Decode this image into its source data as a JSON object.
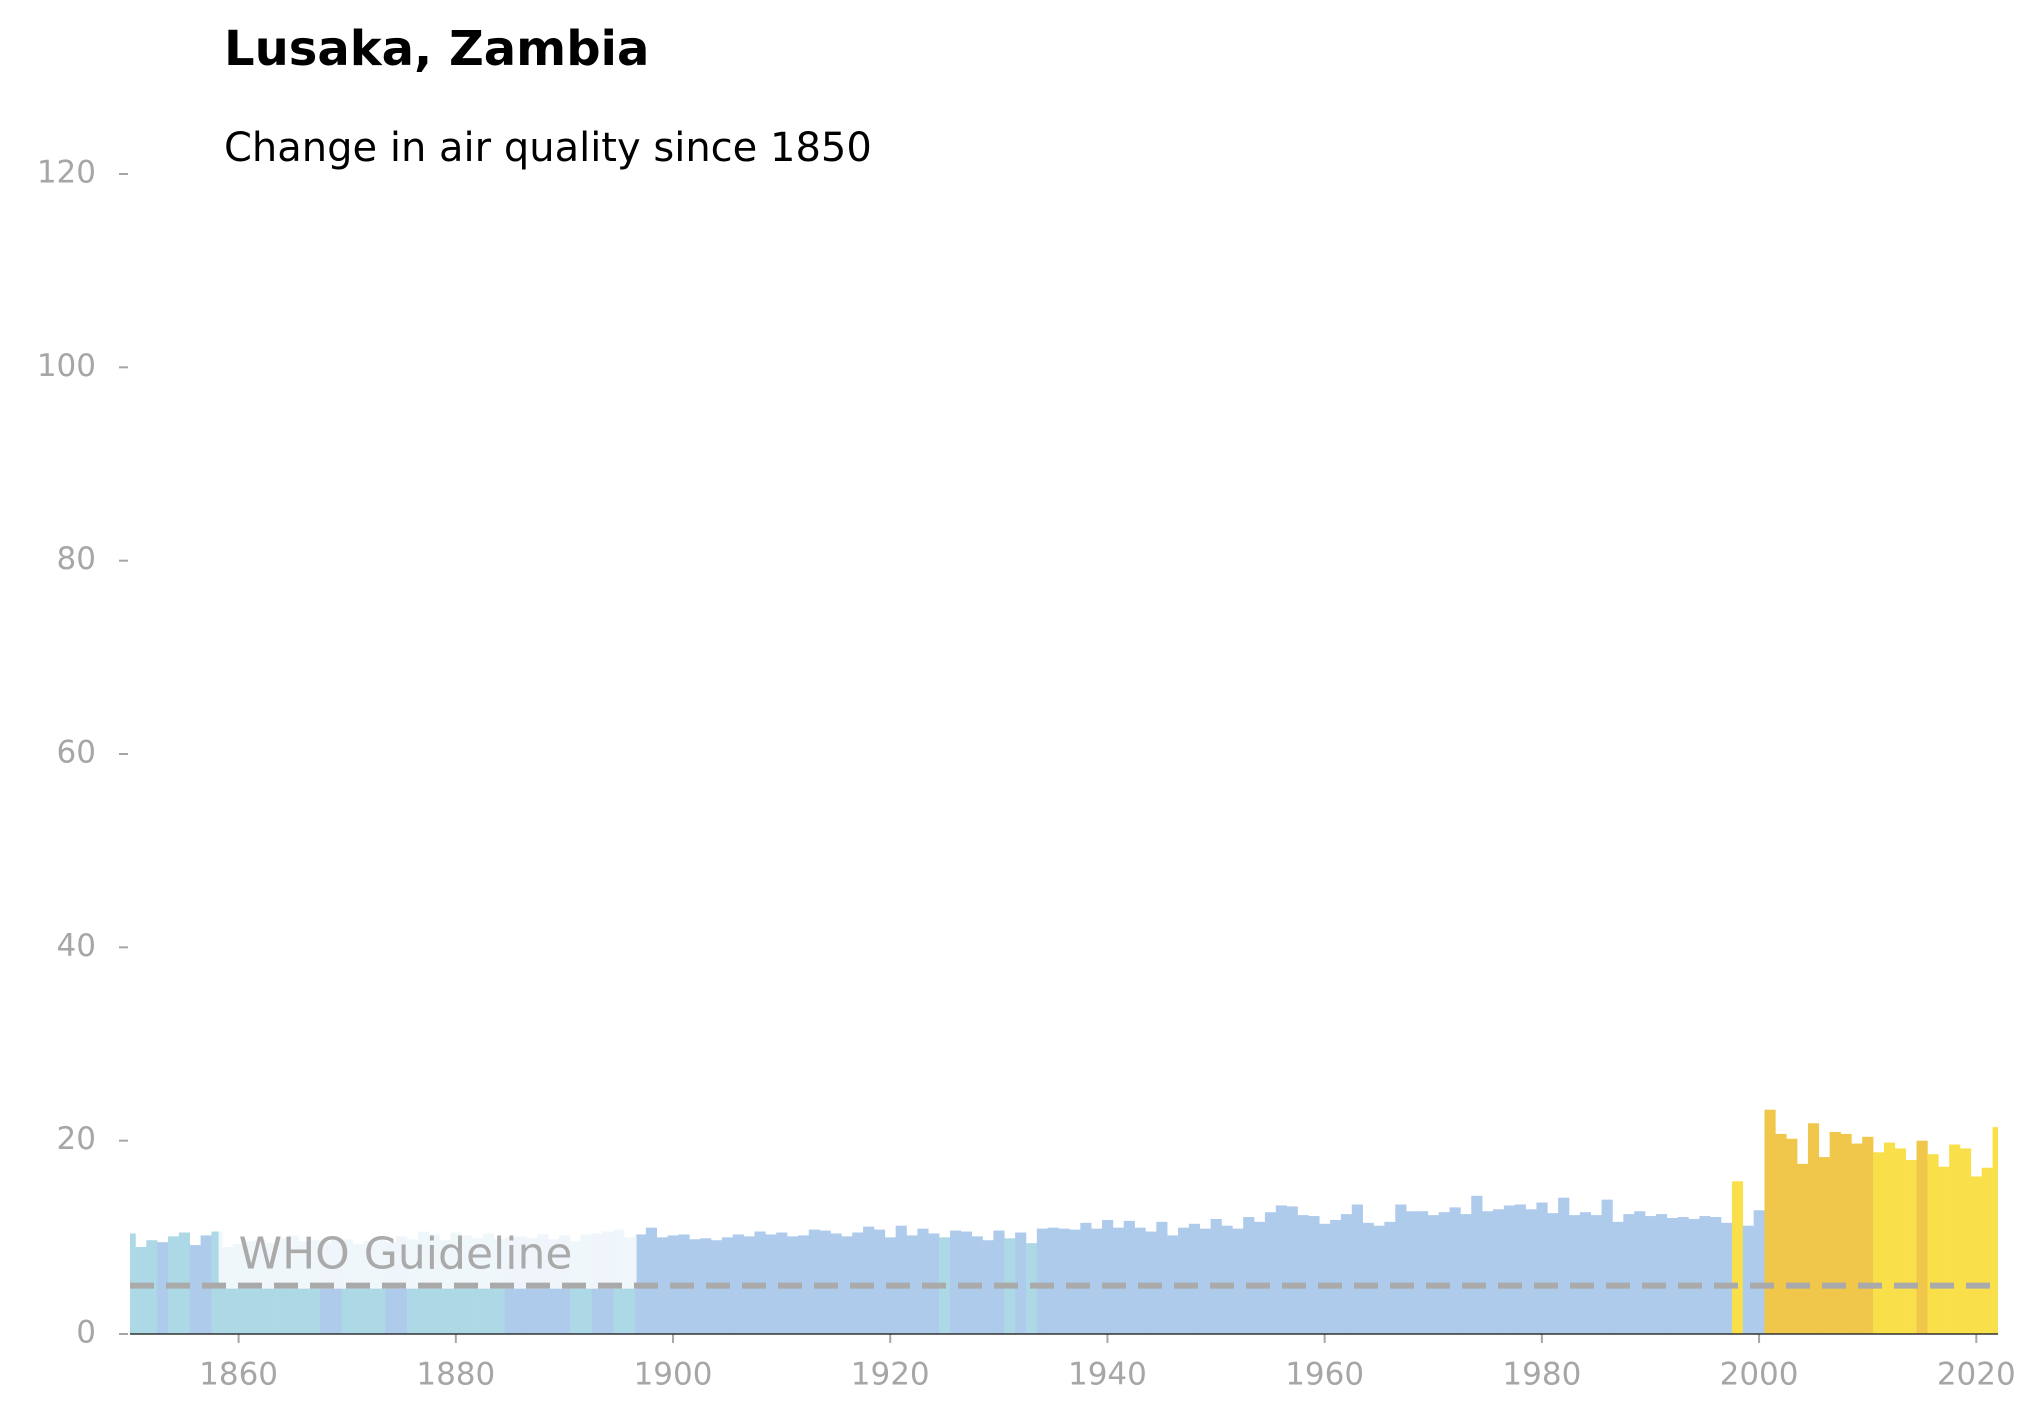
{
  "chart_data": {
    "type": "bar",
    "title": "Lusaka, Zambia",
    "subtitle": "Change in air quality since 1850",
    "x": [
      1850,
      1851,
      1852,
      1853,
      1854,
      1855,
      1856,
      1857,
      1858,
      1859,
      1860,
      1861,
      1862,
      1863,
      1864,
      1865,
      1866,
      1867,
      1868,
      1869,
      1870,
      1871,
      1872,
      1873,
      1874,
      1875,
      1876,
      1877,
      1878,
      1879,
      1880,
      1881,
      1882,
      1883,
      1884,
      1885,
      1886,
      1887,
      1888,
      1889,
      1890,
      1891,
      1892,
      1893,
      1894,
      1895,
      1896,
      1897,
      1898,
      1899,
      1900,
      1901,
      1902,
      1903,
      1904,
      1905,
      1906,
      1907,
      1908,
      1909,
      1910,
      1911,
      1912,
      1913,
      1914,
      1915,
      1916,
      1917,
      1918,
      1919,
      1920,
      1921,
      1922,
      1923,
      1924,
      1925,
      1926,
      1927,
      1928,
      1929,
      1930,
      1931,
      1932,
      1933,
      1934,
      1935,
      1936,
      1937,
      1938,
      1939,
      1940,
      1941,
      1942,
      1943,
      1944,
      1945,
      1946,
      1947,
      1948,
      1949,
      1950,
      1951,
      1952,
      1953,
      1954,
      1955,
      1956,
      1957,
      1958,
      1959,
      1960,
      1961,
      1962,
      1963,
      1964,
      1965,
      1966,
      1967,
      1968,
      1969,
      1970,
      1971,
      1972,
      1973,
      1974,
      1975,
      1976,
      1977,
      1978,
      1979,
      1980,
      1981,
      1982,
      1983,
      1984,
      1985,
      1986,
      1987,
      1988,
      1989,
      1990,
      1991,
      1992,
      1993,
      1994,
      1995,
      1996,
      1997,
      1998,
      1999,
      2000,
      2001,
      2002,
      2003,
      2004,
      2005,
      2006,
      2007,
      2008,
      2009,
      2010,
      2011,
      2012,
      2013,
      2014,
      2015,
      2016,
      2017,
      2018,
      2019,
      2020,
      2021,
      2022
    ],
    "values": [
      10.4,
      9.0,
      9.7,
      9.5,
      10.1,
      10.5,
      9.2,
      10.2,
      10.6,
      9.0,
      9.3,
      9.6,
      9.8,
      9.4,
      9.9,
      10.2,
      9.6,
      9.7,
      9.5,
      9.9,
      9.8,
      9.3,
      9.6,
      10.0,
      9.5,
      10.1,
      9.8,
      10.6,
      10.3,
      9.7,
      10.5,
      10.2,
      9.9,
      10.4,
      9.8,
      10.0,
      10.1,
      9.9,
      10.3,
      9.8,
      10.2,
      9.6,
      10.3,
      10.4,
      10.6,
      10.8,
      10.0,
      10.3,
      11.0,
      10.0,
      10.2,
      10.3,
      9.8,
      9.9,
      9.7,
      10.0,
      10.3,
      10.1,
      10.6,
      10.3,
      10.5,
      10.1,
      10.2,
      10.8,
      10.7,
      10.4,
      10.1,
      10.5,
      11.1,
      10.8,
      10.0,
      11.2,
      10.2,
      10.9,
      10.4,
      10.0,
      10.7,
      10.6,
      10.1,
      9.7,
      10.7,
      9.9,
      10.5,
      9.4,
      10.9,
      11.0,
      10.9,
      10.8,
      11.5,
      10.9,
      11.8,
      11.0,
      11.7,
      11.0,
      10.6,
      11.6,
      10.2,
      11.0,
      11.4,
      10.9,
      11.9,
      11.2,
      10.9,
      12.1,
      11.6,
      12.6,
      13.3,
      13.2,
      12.3,
      12.2,
      11.4,
      11.8,
      12.4,
      13.4,
      11.5,
      11.2,
      11.6,
      13.4,
      12.7,
      12.7,
      12.3,
      12.6,
      13.1,
      12.4,
      14.3,
      12.7,
      12.9,
      13.3,
      13.4,
      12.9,
      13.6,
      12.5,
      14.1,
      12.3,
      12.6,
      12.3,
      13.9,
      11.6,
      12.4,
      12.7,
      12.2,
      12.4,
      12.0,
      12.1,
      11.9,
      12.2,
      12.1,
      11.5,
      15.8,
      11.2,
      12.8,
      23.2,
      20.7,
      20.2,
      17.6,
      21.8,
      18.3,
      20.9,
      20.7,
      19.7,
      20.4,
      18.8,
      19.8,
      19.2,
      18.0,
      20.0,
      18.6,
      17.3,
      19.6,
      19.2,
      16.3,
      17.2,
      21.4
    ],
    "colors": [
      "#add8e6",
      "#add8e6",
      "#add8e6",
      "#aecbeb",
      "#add8e6",
      "#add8e6",
      "#aecbeb",
      "#aecbeb",
      "#add8e6",
      "#add8e6",
      "#add8e6",
      "#add8e6",
      "#add8e6",
      "#add8e6",
      "#add8e6",
      "#add8e6",
      "#add8e6",
      "#add8e6",
      "#aecbeb",
      "#aecbeb",
      "#add8e6",
      "#add8e6",
      "#add8e6",
      "#add8e6",
      "#aecbeb",
      "#aecbeb",
      "#add8e6",
      "#add8e6",
      "#add8e6",
      "#add8e6",
      "#add8e6",
      "#add8e6",
      "#add8e6",
      "#add8e6",
      "#add8e6",
      "#aecbeb",
      "#aecbeb",
      "#aecbeb",
      "#aecbeb",
      "#aecbeb",
      "#aecbeb",
      "#add8e6",
      "#add8e6",
      "#aecbeb",
      "#aecbeb",
      "#add8e6",
      "#add8e6",
      "#aecbeb",
      "#aecbeb",
      "#aecbeb",
      "#aecbeb",
      "#aecbeb",
      "#aecbeb",
      "#aecbeb",
      "#aecbeb",
      "#aecbeb",
      "#aecbeb",
      "#aecbeb",
      "#aecbeb",
      "#aecbeb",
      "#aecbeb",
      "#aecbeb",
      "#aecbeb",
      "#aecbeb",
      "#aecbeb",
      "#aecbeb",
      "#aecbeb",
      "#aecbeb",
      "#aecbeb",
      "#aecbeb",
      "#aecbeb",
      "#aecbeb",
      "#aecbeb",
      "#aecbeb",
      "#aecbeb",
      "#add8e6",
      "#aecbeb",
      "#aecbeb",
      "#aecbeb",
      "#aecbeb",
      "#aecbeb",
      "#add8e6",
      "#aecbeb",
      "#add8e6",
      "#aecbeb",
      "#aecbeb",
      "#aecbeb",
      "#aecbeb",
      "#aecbeb",
      "#aecbeb",
      "#aecbeb",
      "#aecbeb",
      "#aecbeb",
      "#aecbeb",
      "#aecbeb",
      "#aecbeb",
      "#aecbeb",
      "#aecbeb",
      "#aecbeb",
      "#aecbeb",
      "#aecbeb",
      "#aecbeb",
      "#aecbeb",
      "#aecbeb",
      "#aecbeb",
      "#aecbeb",
      "#aecbeb",
      "#aecbeb",
      "#aecbeb",
      "#aecbeb",
      "#aecbeb",
      "#aecbeb",
      "#aecbeb",
      "#aecbeb",
      "#aecbeb",
      "#aecbeb",
      "#aecbeb",
      "#aecbeb",
      "#aecbeb",
      "#aecbeb",
      "#aecbeb",
      "#aecbeb",
      "#aecbeb",
      "#aecbeb",
      "#aecbeb",
      "#aecbeb",
      "#aecbeb",
      "#aecbeb",
      "#aecbeb",
      "#aecbeb",
      "#aecbeb",
      "#aecbeb",
      "#aecbeb",
      "#aecbeb",
      "#aecbeb",
      "#aecbeb",
      "#aecbeb",
      "#aecbeb",
      "#aecbeb",
      "#aecbeb",
      "#aecbeb",
      "#aecbeb",
      "#aecbeb",
      "#aecbeb",
      "#aecbeb",
      "#aecbeb",
      "#aecbeb",
      "#aecbeb",
      "#f9e04b",
      "#aecbeb",
      "#aecbeb",
      "#f0c64b",
      "#f0c64b",
      "#f0c64b",
      "#f0c64b",
      "#f0c64b",
      "#f0c64b",
      "#f0c64b",
      "#f0c64b",
      "#f0c64b",
      "#f0c64b",
      "#f9e04b",
      "#f9e04b",
      "#f9e04b",
      "#f9e04b",
      "#f0c64b",
      "#f9e04b",
      "#f9e04b",
      "#f9e04b",
      "#f9e04b",
      "#f9e04b",
      "#f9e04b",
      "#f9e04b"
    ],
    "xlim": [
      1850,
      2022
    ],
    "ylim": [
      0,
      120
    ],
    "xticks": [
      1860,
      1880,
      1900,
      1920,
      1940,
      1960,
      1980,
      2000,
      2020
    ],
    "yticks": [
      0,
      20,
      40,
      60,
      80,
      100,
      120
    ],
    "guideline": {
      "value": 5,
      "label": "WHO Guideline",
      "label_x": 1860,
      "label_y": 8,
      "color": "#aaaaaa"
    }
  }
}
